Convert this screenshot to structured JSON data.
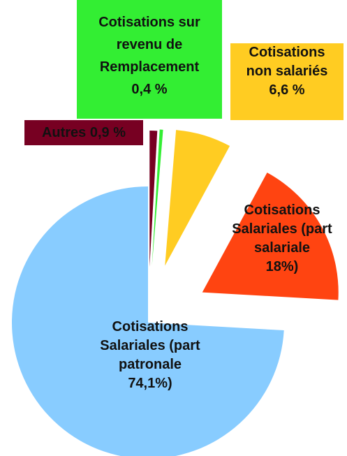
{
  "chart_data": {
    "type": "pie",
    "categories": [
      "Cotisations Salariales (part patronale",
      "Cotisations Salariales (part salariale",
      "Cotisations non salariés",
      "Autres",
      "Cotisations sur revenu de Remplacement"
    ],
    "values": [
      74.1,
      18,
      6.6,
      0.9,
      0.4
    ],
    "value_labels": [
      "74,1%)",
      "18%)",
      "6,6 %",
      "0,9 %",
      "0,4 %"
    ],
    "colors": [
      "#88ccff",
      "#ff4411",
      "#ffcc22",
      "#770022",
      "#33ee33"
    ]
  }
}
